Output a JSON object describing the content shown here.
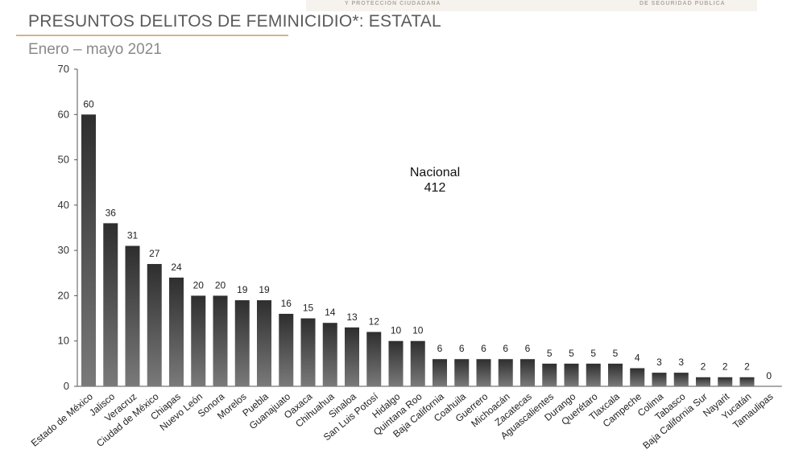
{
  "header": {
    "strip_left": "Y PROTECCIÓN CIUDADANA",
    "strip_right": "DE SEGURIDAD PÚBLICA",
    "title": "PRESUNTOS DELITOS DE FEMINICIDIO*: ESTATAL",
    "subtitle": "Enero – mayo 2021"
  },
  "annotation": {
    "line1": "Nacional",
    "line2": "412"
  },
  "colors": {
    "bar_top": "#2e2e2e",
    "bar_bottom": "#7a7a7a",
    "axis": "#555555",
    "title_underline": "#d2b48c"
  },
  "chart_data": {
    "type": "bar",
    "title": "PRESUNTOS DELITOS DE FEMINICIDIO*: ESTATAL",
    "subtitle": "Enero – mayo 2021",
    "xlabel": "",
    "ylabel": "",
    "ylim": [
      0,
      70
    ],
    "yticks": [
      0,
      10,
      20,
      30,
      40,
      50,
      60,
      70
    ],
    "grid": false,
    "categories": [
      "Estado de México",
      "Jalisco",
      "Veracruz",
      "Ciudad de México",
      "Chiapas",
      "Nuevo León",
      "Sonora",
      "Morelos",
      "Puebla",
      "Guanajuato",
      "Oaxaca",
      "Chihuahua",
      "Sinaloa",
      "San Luis Potosí",
      "Hidalgo",
      "Quintana Roo",
      "Baja California",
      "Coahuila",
      "Guerrero",
      "Michoacán",
      "Zacatecas",
      "Aguascalientes",
      "Durango",
      "Querétaro",
      "Tlaxcala",
      "Campeche",
      "Colima",
      "Tabasco",
      "Baja California Sur",
      "Nayarit",
      "Yucatán",
      "Tamaulipas"
    ],
    "values": [
      60,
      36,
      31,
      27,
      24,
      20,
      20,
      19,
      19,
      16,
      15,
      14,
      13,
      12,
      10,
      10,
      6,
      6,
      6,
      6,
      6,
      5,
      5,
      5,
      5,
      4,
      3,
      3,
      2,
      2,
      2,
      0
    ]
  }
}
